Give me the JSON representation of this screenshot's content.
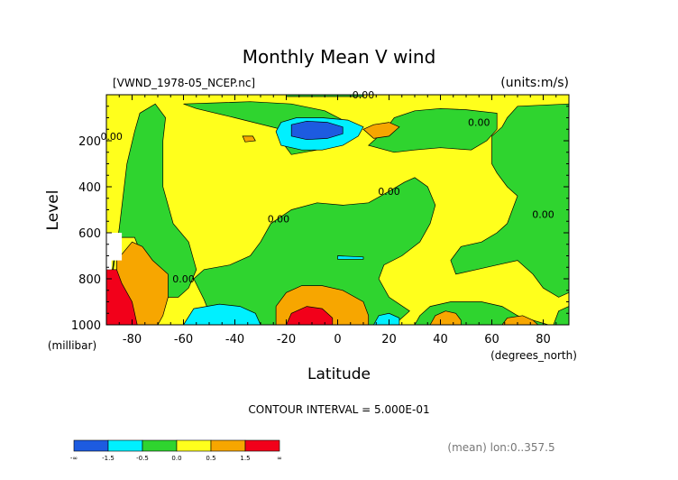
{
  "chart_data": {
    "type": "heatmap",
    "title": "Monthly Mean V wind",
    "file_label": "[VWND_1978-05_NCEP.nc]",
    "units_label": "(units:m/s)",
    "xlabel": "Latitude",
    "x_units": "(degrees_north)",
    "ylabel": "Level",
    "y_units": "(millibar)",
    "xlim": [
      -90,
      90
    ],
    "ylim": [
      1000,
      0
    ],
    "x_ticks": [
      -80,
      -60,
      -40,
      -20,
      0,
      20,
      40,
      60,
      80
    ],
    "y_ticks": [
      200,
      400,
      600,
      800,
      1000
    ],
    "contour_interval_text": "CONTOUR INTERVAL = 5.000E-01",
    "contour_label": "0.00",
    "footer_note": "(mean) lon:0..357.5",
    "colorbar": {
      "labels": [
        "-∞",
        "-1.5",
        "-0.5",
        "0.0",
        "0.5",
        "1.5",
        "∞"
      ],
      "colors": [
        "#1d5be0",
        "#00f0ff",
        "#2fd42f",
        "#ffff1c",
        "#f7a600",
        "#f2001a"
      ]
    },
    "regions": [
      {
        "name": "green-band-south",
        "color": "#2fd42f",
        "points": [
          [
            -90,
            960
          ],
          [
            -85,
            580
          ],
          [
            -82,
            300
          ],
          [
            -79,
            160
          ],
          [
            -77,
            80
          ],
          [
            -71,
            40
          ],
          [
            -67,
            100
          ],
          [
            -68,
            200
          ],
          [
            -68,
            400
          ],
          [
            -64,
            560
          ],
          [
            -58,
            640
          ],
          [
            -55,
            760
          ],
          [
            -58,
            840
          ],
          [
            -62,
            880
          ],
          [
            -70,
            880
          ],
          [
            -74,
            760
          ],
          [
            -79,
            620
          ],
          [
            -86,
            620
          ]
        ]
      },
      {
        "name": "green-lower-middle",
        "color": "#2fd42f",
        "points": [
          [
            -48,
            1000
          ],
          [
            -52,
            890
          ],
          [
            -56,
            800
          ],
          [
            -52,
            760
          ],
          [
            -42,
            740
          ],
          [
            -34,
            700
          ],
          [
            -30,
            640
          ],
          [
            -26,
            560
          ],
          [
            -18,
            500
          ],
          [
            -8,
            470
          ],
          [
            2,
            480
          ],
          [
            12,
            470
          ],
          [
            20,
            420
          ],
          [
            26,
            380
          ],
          [
            30,
            360
          ],
          [
            35,
            400
          ],
          [
            38,
            480
          ],
          [
            36,
            560
          ],
          [
            32,
            640
          ],
          [
            25,
            700
          ],
          [
            18,
            740
          ],
          [
            16,
            800
          ],
          [
            20,
            880
          ],
          [
            28,
            940
          ],
          [
            22,
            1000
          ]
        ]
      },
      {
        "name": "green-upper-middle",
        "color": "#2fd42f",
        "points": [
          [
            -60,
            40
          ],
          [
            -55,
            60
          ],
          [
            -40,
            100
          ],
          [
            -22,
            150
          ],
          [
            -22,
            200
          ],
          [
            -18,
            260
          ],
          [
            -8,
            240
          ],
          [
            2,
            200
          ],
          [
            6,
            150
          ],
          [
            2,
            110
          ],
          [
            -5,
            70
          ],
          [
            -18,
            40
          ],
          [
            -34,
            30
          ]
        ]
      },
      {
        "name": "green-north-upper",
        "color": "#2fd42f",
        "points": [
          [
            12,
            220
          ],
          [
            18,
            160
          ],
          [
            22,
            100
          ],
          [
            30,
            70
          ],
          [
            40,
            60
          ],
          [
            50,
            65
          ],
          [
            62,
            80
          ],
          [
            62,
            150
          ],
          [
            58,
            200
          ],
          [
            52,
            240
          ],
          [
            40,
            230
          ],
          [
            30,
            240
          ],
          [
            22,
            250
          ]
        ]
      },
      {
        "name": "green-north-large",
        "color": "#2fd42f",
        "points": [
          [
            70,
            50
          ],
          [
            90,
            40
          ],
          [
            90,
            860
          ],
          [
            86,
            880
          ],
          [
            80,
            840
          ],
          [
            76,
            780
          ],
          [
            70,
            720
          ],
          [
            62,
            740
          ],
          [
            54,
            760
          ],
          [
            46,
            780
          ],
          [
            44,
            720
          ],
          [
            48,
            660
          ],
          [
            56,
            640
          ],
          [
            62,
            600
          ],
          [
            66,
            560
          ],
          [
            68,
            500
          ],
          [
            70,
            440
          ],
          [
            66,
            400
          ],
          [
            62,
            340
          ],
          [
            60,
            300
          ],
          [
            60,
            240
          ],
          [
            60,
            180
          ],
          [
            64,
            140
          ],
          [
            66,
            100
          ]
        ]
      },
      {
        "name": "green-bottom-right",
        "color": "#2fd42f",
        "points": [
          [
            30,
            1000
          ],
          [
            32,
            960
          ],
          [
            36,
            920
          ],
          [
            44,
            900
          ],
          [
            56,
            900
          ],
          [
            64,
            920
          ],
          [
            70,
            960
          ],
          [
            76,
            980
          ],
          [
            82,
            1000
          ]
        ]
      },
      {
        "name": "green-far-right-bottom",
        "color": "#2fd42f",
        "points": [
          [
            84,
            1000
          ],
          [
            86,
            940
          ],
          [
            90,
            920
          ],
          [
            90,
            1000
          ]
        ]
      },
      {
        "name": "green-top-strip",
        "color": "#2fd42f",
        "points": [
          [
            -20,
            0
          ],
          [
            10,
            0
          ],
          [
            10,
            8
          ],
          [
            -20,
            8
          ]
        ]
      },
      {
        "name": "blue-upper-core",
        "color": "#00f0ff",
        "points": [
          [
            -22,
            120
          ],
          [
            -16,
            100
          ],
          [
            -6,
            100
          ],
          [
            4,
            110
          ],
          [
            10,
            140
          ],
          [
            8,
            180
          ],
          [
            2,
            220
          ],
          [
            -6,
            240
          ],
          [
            -14,
            240
          ],
          [
            -22,
            220
          ],
          [
            -24,
            160
          ]
        ]
      },
      {
        "name": "navy-upper-core",
        "color": "#1d5be0",
        "points": [
          [
            -18,
            130
          ],
          [
            -12,
            115
          ],
          [
            -4,
            120
          ],
          [
            2,
            140
          ],
          [
            2,
            170
          ],
          [
            -4,
            190
          ],
          [
            -12,
            195
          ],
          [
            -18,
            180
          ]
        ]
      },
      {
        "name": "orange-upper-small",
        "color": "#f7a600",
        "points": [
          [
            10,
            150
          ],
          [
            14,
            130
          ],
          [
            20,
            120
          ],
          [
            24,
            140
          ],
          [
            20,
            180
          ],
          [
            14,
            190
          ]
        ]
      },
      {
        "name": "orange-upper-left",
        "color": "#f7a600",
        "points": [
          [
            -37,
            180
          ],
          [
            -33,
            180
          ],
          [
            -32,
            200
          ],
          [
            -36,
            205
          ]
        ]
      },
      {
        "name": "orange-lower-south",
        "color": "#f7a600",
        "points": [
          [
            -82,
            1000
          ],
          [
            -86,
            860
          ],
          [
            -86,
            720
          ],
          [
            -80,
            640
          ],
          [
            -76,
            660
          ],
          [
            -72,
            720
          ],
          [
            -66,
            780
          ],
          [
            -66,
            880
          ],
          [
            -68,
            960
          ],
          [
            -70,
            1000
          ]
        ]
      },
      {
        "name": "orange-lower-core",
        "color": "#f7a600",
        "points": [
          [
            -24,
            1000
          ],
          [
            -24,
            920
          ],
          [
            -20,
            860
          ],
          [
            -14,
            830
          ],
          [
            -6,
            830
          ],
          [
            2,
            850
          ],
          [
            10,
            900
          ],
          [
            12,
            960
          ],
          [
            12,
            1000
          ]
        ]
      },
      {
        "name": "red-lower-core",
        "color": "#f2001a",
        "points": [
          [
            -20,
            1000
          ],
          [
            -18,
            950
          ],
          [
            -12,
            920
          ],
          [
            -6,
            930
          ],
          [
            -2,
            970
          ],
          [
            -2,
            1000
          ]
        ]
      },
      {
        "name": "orange-lower-north",
        "color": "#f7a600",
        "points": [
          [
            36,
            1000
          ],
          [
            38,
            960
          ],
          [
            42,
            940
          ],
          [
            46,
            950
          ],
          [
            48,
            980
          ],
          [
            48,
            1000
          ]
        ]
      },
      {
        "name": "orange-lower-north-2",
        "color": "#f7a600",
        "points": [
          [
            64,
            1000
          ],
          [
            66,
            970
          ],
          [
            72,
            960
          ],
          [
            76,
            980
          ],
          [
            78,
            1000
          ]
        ]
      },
      {
        "name": "red-lower-south",
        "color": "#f2001a",
        "points": [
          [
            -90,
            1000
          ],
          [
            -90,
            760
          ],
          [
            -86,
            760
          ],
          [
            -84,
            820
          ],
          [
            -80,
            900
          ],
          [
            -78,
            1000
          ]
        ]
      },
      {
        "name": "blue-lower-south",
        "color": "#00f0ff",
        "points": [
          [
            -60,
            1000
          ],
          [
            -56,
            930
          ],
          [
            -46,
            910
          ],
          [
            -38,
            920
          ],
          [
            -32,
            950
          ],
          [
            -30,
            1000
          ]
        ]
      },
      {
        "name": "blue-lower-north",
        "color": "#00f0ff",
        "points": [
          [
            14,
            1000
          ],
          [
            16,
            960
          ],
          [
            20,
            950
          ],
          [
            24,
            970
          ],
          [
            24,
            1000
          ]
        ]
      },
      {
        "name": "blue-strip-mid",
        "color": "#00f0ff",
        "points": [
          [
            0,
            700
          ],
          [
            10,
            705
          ],
          [
            10,
            715
          ],
          [
            0,
            715
          ]
        ]
      }
    ],
    "missing_region": {
      "points": [
        [
          -90,
          600
        ],
        [
          -84,
          600
        ],
        [
          -84,
          720
        ],
        [
          -88,
          720
        ],
        [
          -88,
          760
        ],
        [
          -90,
          760
        ]
      ]
    },
    "contour_labels": [
      {
        "text": "0.00",
        "x": 10,
        "y": 0
      },
      {
        "text": "0.00",
        "x": 55,
        "y": 120
      },
      {
        "text": "0.00",
        "x": -88,
        "y": 180
      },
      {
        "text": "0.00",
        "x": 20,
        "y": 420
      },
      {
        "text": "0.00",
        "x": -23,
        "y": 540
      },
      {
        "text": "0.00",
        "x": 80,
        "y": 520
      },
      {
        "text": "0.00",
        "x": -60,
        "y": 800
      }
    ]
  }
}
